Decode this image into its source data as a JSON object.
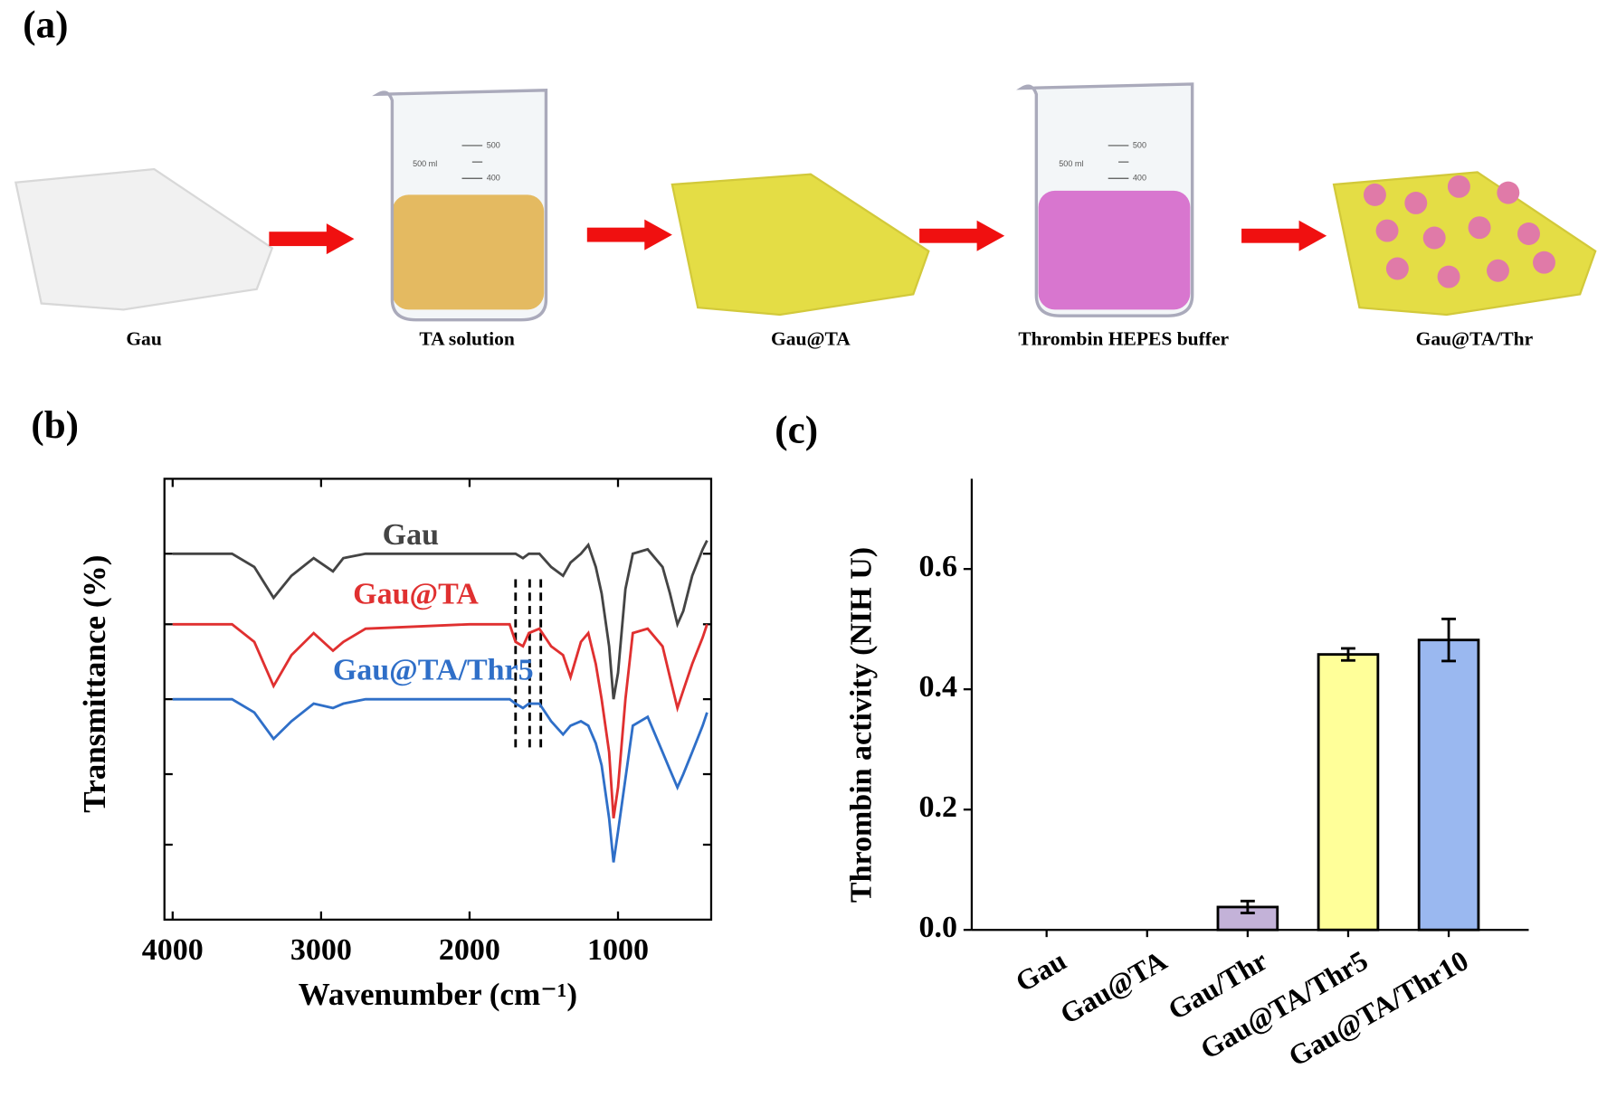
{
  "panel_labels": [
    "(a)",
    "(b)",
    "(c)"
  ],
  "schematic": {
    "steps": [
      "Gau",
      "TA solution",
      "Gau@TA",
      "Thrombin HEPES buffer",
      "Gau@TA/Thr"
    ],
    "beaker_marks": [
      "500 ml",
      "500",
      "400"
    ]
  },
  "chart_data": [
    {
      "type": "line",
      "xlabel": "Wavenumber (cm⁻¹)",
      "ylabel": "Transmittance (%)",
      "xlim": [
        4000,
        400
      ],
      "xticks": [
        4000,
        3000,
        2000,
        1000
      ],
      "ylim": [
        0,
        100
      ],
      "yticks": [
        17,
        33,
        50,
        67,
        83
      ],
      "vlines": [
        1690,
        1595,
        1520
      ],
      "x": [
        4000,
        3600,
        3450,
        3320,
        3200,
        3050,
        2920,
        2850,
        2700,
        2000,
        1730,
        1690,
        1640,
        1600,
        1530,
        1450,
        1370,
        1320,
        1250,
        1200,
        1150,
        1110,
        1060,
        1030,
        1000,
        950,
        900,
        800,
        700,
        650,
        600,
        560,
        500,
        430,
        400
      ],
      "series": [
        {
          "name": "Gau",
          "color": "#444444",
          "values": [
            83,
            83,
            80,
            73,
            78,
            82,
            79,
            82,
            83,
            83,
            83,
            83,
            82,
            83,
            83,
            80,
            78,
            81,
            83,
            85,
            80,
            74,
            62,
            50,
            56,
            75,
            83,
            84,
            80,
            74,
            67,
            70,
            78,
            84,
            86
          ]
        },
        {
          "name": "Gau@TA",
          "color": "#e03030",
          "values": [
            67,
            67,
            63,
            53,
            60,
            65,
            61,
            63,
            66,
            67,
            67,
            63,
            62,
            65,
            66,
            62,
            60,
            55,
            63,
            65,
            58,
            50,
            38,
            23,
            30,
            50,
            65,
            66,
            62,
            55,
            48,
            52,
            58,
            64,
            67
          ]
        },
        {
          "name": "Gau@TA/Thr5",
          "color": "#2f6fc8",
          "values": [
            50,
            50,
            47,
            41,
            45,
            49,
            48,
            49,
            50,
            50,
            50,
            49,
            48,
            49,
            49,
            45,
            42,
            44,
            45,
            44,
            40,
            35,
            23,
            13,
            20,
            32,
            44,
            46,
            38,
            34,
            30,
            33,
            38,
            44,
            47
          ]
        }
      ]
    },
    {
      "type": "bar",
      "ylabel": "Thrombin activity (NIH U)",
      "categories": [
        "Gau",
        "Gau@TA",
        "Gau/Thr",
        "Gau@TA/Thr5",
        "Gau@TA/Thr10"
      ],
      "values": [
        0,
        0,
        0.038,
        0.458,
        0.482
      ],
      "errors": [
        0,
        0,
        0.01,
        0.01,
        0.035
      ],
      "colors": [
        "#ffffff",
        "#ffffff",
        "#c3b2d8",
        "#ffff99",
        "#9ab8f0"
      ],
      "ylim": [
        0,
        0.75
      ],
      "yticks": [
        {
          "value": 0,
          "label": "0.0"
        },
        {
          "value": 0.2,
          "label": "0.2"
        },
        {
          "value": 0.4,
          "label": "0.4"
        },
        {
          "value": 0.6,
          "label": "0.6"
        }
      ]
    }
  ]
}
